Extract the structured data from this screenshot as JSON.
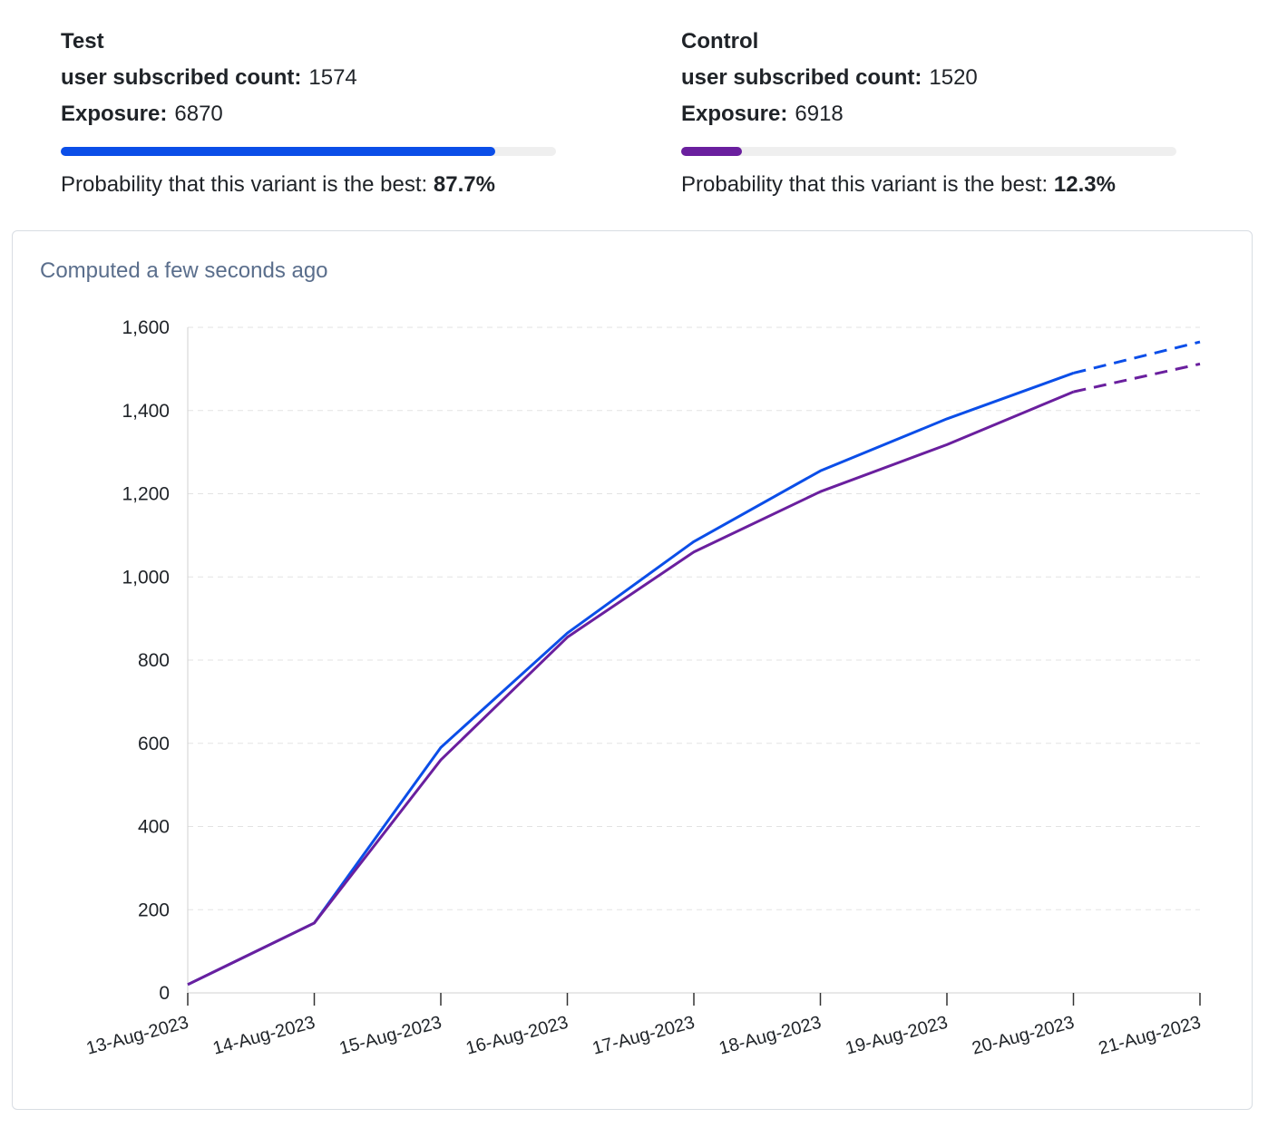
{
  "variants": [
    {
      "name": "Test",
      "metric_label": "user subscribed count:",
      "metric_value": "1574",
      "exposure_label": "Exposure:",
      "exposure_value": "6870",
      "probability_label": "Probability that this variant is the best:",
      "probability_value": "87.7%",
      "probability": 0.877,
      "color": "#0b4ee8"
    },
    {
      "name": "Control",
      "metric_label": "user subscribed count:",
      "metric_value": "1520",
      "exposure_label": "Exposure:",
      "exposure_value": "6918",
      "probability_label": "Probability that this variant is the best:",
      "probability_value": "12.3%",
      "probability": 0.123,
      "color": "#6a1f9e"
    }
  ],
  "computed_text": "Computed a few seconds ago",
  "chart_data": {
    "type": "line",
    "x": [
      "13-Aug-2023",
      "14-Aug-2023",
      "15-Aug-2023",
      "16-Aug-2023",
      "17-Aug-2023",
      "18-Aug-2023",
      "19-Aug-2023",
      "20-Aug-2023",
      "21-Aug-2023"
    ],
    "y_ticks": [
      "0",
      "200",
      "400",
      "600",
      "800",
      "1,000",
      "1,200",
      "1,400",
      "1,600"
    ],
    "ylim": [
      0,
      1600
    ],
    "grid": true,
    "dashed_last_segment": true,
    "series": [
      {
        "color": "#0b4ee8",
        "values": [
          20,
          168,
          590,
          865,
          1085,
          1255,
          1380,
          1490,
          1565
        ]
      },
      {
        "color": "#6a1f9e",
        "values": [
          20,
          168,
          560,
          855,
          1060,
          1205,
          1318,
          1445,
          1512
        ]
      }
    ]
  }
}
